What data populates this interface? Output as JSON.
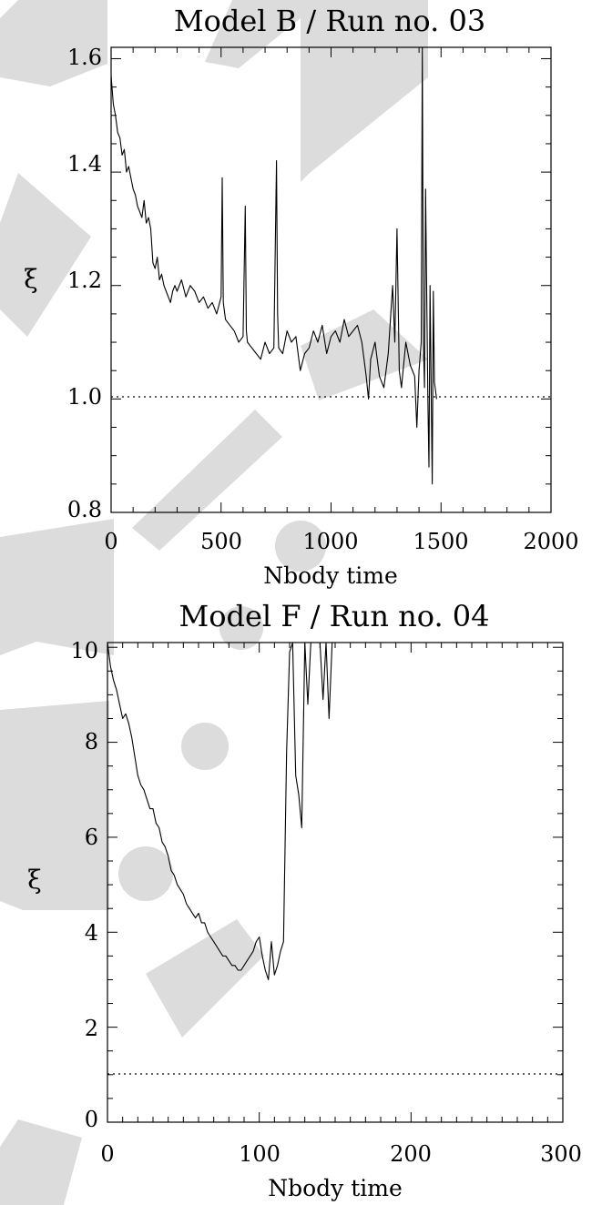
{
  "chart_data": [
    {
      "type": "line",
      "title": "Model B / Run no. 03",
      "xlabel": "Nbody time",
      "ylabel": "ξ",
      "xlim": [
        0,
        2000
      ],
      "ylim": [
        0.8,
        1.62
      ],
      "xticks": [
        "0",
        "500",
        "1000",
        "1500",
        "2000"
      ],
      "yticks": [
        "0.8",
        "1.0",
        "1.2",
        "1.4",
        "1.6"
      ],
      "reference_line": {
        "y": 1.0,
        "style": "dotted"
      },
      "series": [
        {
          "x": [
            0,
            10,
            20,
            30,
            40,
            50,
            60,
            70,
            80,
            90,
            100,
            110,
            120,
            130,
            140,
            150,
            160,
            170,
            180,
            190,
            200,
            210,
            220,
            230,
            240,
            250,
            260,
            270,
            280,
            290,
            300,
            320,
            340,
            360,
            380,
            400,
            420,
            440,
            460,
            480,
            500,
            505,
            510,
            520,
            540,
            560,
            580,
            600,
            610,
            615,
            620,
            640,
            660,
            680,
            700,
            720,
            740,
            752,
            757,
            762,
            780,
            800,
            820,
            840,
            860,
            880,
            900,
            920,
            940,
            960,
            980,
            1000,
            1020,
            1040,
            1060,
            1080,
            1100,
            1120,
            1140,
            1160,
            1170,
            1180,
            1200,
            1220,
            1240,
            1260,
            1280,
            1290,
            1300,
            1310,
            1320,
            1340,
            1360,
            1380,
            1390,
            1400,
            1410,
            1415,
            1420,
            1425,
            1430,
            1440,
            1445,
            1450,
            1455,
            1460,
            1465,
            1470,
            1480
          ],
          "y": [
            1.57,
            1.52,
            1.5,
            1.47,
            1.46,
            1.43,
            1.44,
            1.4,
            1.41,
            1.39,
            1.37,
            1.36,
            1.34,
            1.33,
            1.32,
            1.35,
            1.31,
            1.32,
            1.3,
            1.24,
            1.23,
            1.25,
            1.21,
            1.22,
            1.2,
            1.19,
            1.18,
            1.17,
            1.19,
            1.2,
            1.19,
            1.21,
            1.18,
            1.2,
            1.19,
            1.17,
            1.18,
            1.16,
            1.17,
            1.15,
            1.18,
            1.39,
            1.17,
            1.14,
            1.13,
            1.12,
            1.1,
            1.11,
            1.34,
            1.12,
            1.1,
            1.09,
            1.08,
            1.07,
            1.1,
            1.08,
            1.09,
            1.42,
            1.15,
            1.09,
            1.08,
            1.12,
            1.1,
            1.11,
            1.05,
            1.08,
            1.09,
            1.12,
            1.1,
            1.13,
            1.08,
            1.11,
            1.12,
            1.1,
            1.14,
            1.11,
            1.12,
            1.13,
            1.1,
            1.04,
            1.0,
            1.07,
            1.1,
            1.04,
            1.02,
            1.08,
            1.2,
            1.1,
            1.3,
            1.05,
            1.02,
            1.1,
            1.06,
            1.04,
            0.95,
            1.05,
            1.1,
            1.62,
            1.1,
            1.02,
            1.37,
            1.0,
            0.88,
            1.2,
            1.02,
            0.85,
            1.19,
            1.03,
            1.0
          ]
        }
      ]
    },
    {
      "type": "line",
      "title": "Model F / Run no. 04",
      "xlabel": "Nbody time",
      "ylabel": "ξ",
      "xlim": [
        0,
        300
      ],
      "ylim": [
        0,
        10.1
      ],
      "xticks": [
        "0",
        "100",
        "200",
        "300"
      ],
      "yticks": [
        "0",
        "2",
        "4",
        "6",
        "8",
        "10"
      ],
      "reference_line": {
        "y": 1.0,
        "style": "dotted"
      },
      "series": [
        {
          "x": [
            0,
            2,
            4,
            6,
            8,
            10,
            12,
            14,
            16,
            18,
            20,
            22,
            24,
            26,
            28,
            30,
            32,
            34,
            36,
            38,
            40,
            42,
            44,
            46,
            48,
            50,
            52,
            54,
            56,
            58,
            60,
            62,
            64,
            66,
            68,
            70,
            72,
            74,
            76,
            78,
            80,
            82,
            84,
            86,
            88,
            90,
            92,
            94,
            96,
            98,
            100,
            102,
            104,
            106,
            108,
            110,
            112,
            114,
            116,
            118,
            120,
            122,
            124,
            126,
            128,
            130,
            132,
            134,
            140,
            142,
            144,
            146,
            148
          ],
          "y": [
            10.1,
            9.6,
            9.3,
            9.1,
            8.8,
            8.5,
            8.6,
            8.4,
            8.1,
            7.7,
            7.3,
            7.1,
            7.0,
            6.8,
            6.6,
            6.6,
            6.3,
            6.2,
            5.9,
            5.8,
            5.6,
            5.3,
            5.2,
            5.0,
            4.9,
            4.8,
            4.6,
            4.5,
            4.4,
            4.3,
            4.4,
            4.2,
            4.2,
            4.0,
            3.9,
            3.8,
            3.7,
            3.6,
            3.5,
            3.5,
            3.4,
            3.3,
            3.3,
            3.2,
            3.2,
            3.3,
            3.4,
            3.5,
            3.6,
            3.8,
            3.9,
            3.5,
            3.2,
            3.0,
            3.8,
            3.1,
            3.3,
            3.6,
            3.8,
            7.8,
            9.9,
            10.1,
            7.3,
            6.9,
            6.2,
            10.1,
            8.8,
            10.1,
            10.1,
            8.9,
            10.1,
            8.5,
            10.1
          ]
        }
      ]
    }
  ]
}
